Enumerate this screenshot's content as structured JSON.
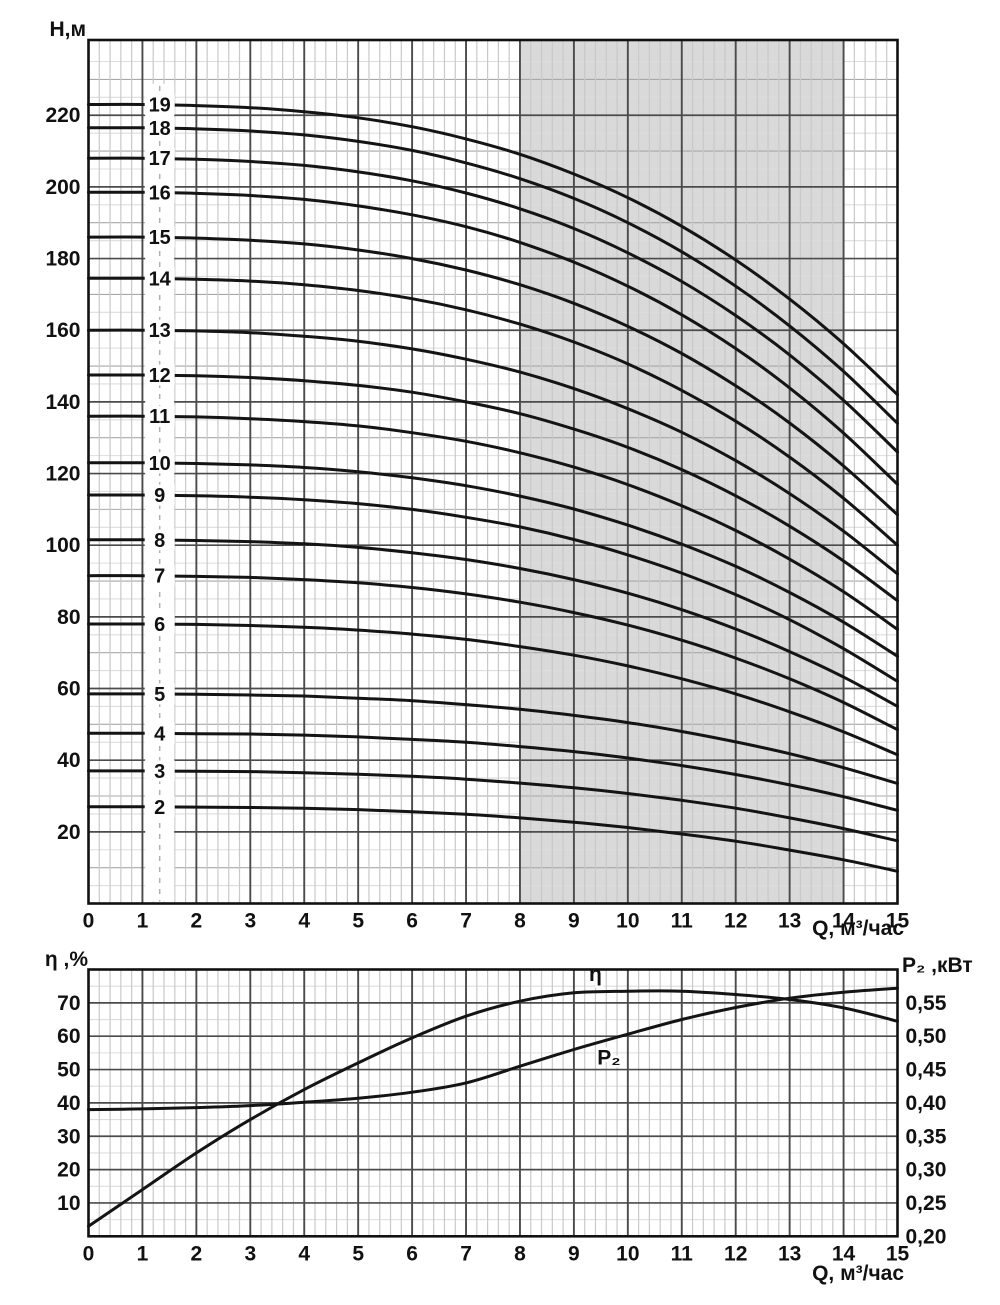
{
  "figure": {
    "background": "#ffffff",
    "description": "Pump performance curves: head vs flow for 2-19 stages (top), efficiency and shaft power vs flow (bottom)"
  },
  "colors": {
    "curve": "#141414",
    "band": "#d9d9d9",
    "grid_major": "#4b4b4b",
    "grid_mid": "#a8a8a8",
    "grid_light": "#dddddd",
    "grid_minor_v": "#c9c9c9",
    "border": "#111111",
    "dashed_guide": "#b0b0b0"
  },
  "chart_data": [
    {
      "type": "line",
      "id": "head_flow_chart",
      "ylabel": "Н,м",
      "xlabel": "Q, м³/час",
      "x_range": [
        0,
        15
      ],
      "y_range": [
        0,
        241
      ],
      "x_ticks": [
        0,
        1,
        2,
        3,
        4,
        5,
        6,
        7,
        8,
        9,
        10,
        11,
        12,
        13,
        14,
        15
      ],
      "y_ticks": [
        20,
        40,
        60,
        80,
        100,
        120,
        140,
        160,
        180,
        200,
        220
      ],
      "x_minor_step": 0.2,
      "y_minor_step": 5,
      "y_mid_step": 10,
      "grid": "on",
      "operating_band_q": [
        8,
        14
      ],
      "curve_label_q": 1.32,
      "x": [
        0,
        1,
        2,
        3,
        4,
        5,
        6,
        7,
        8,
        9,
        10,
        11,
        12,
        13,
        14,
        15
      ],
      "series": [
        {
          "name": "2",
          "values": [
            27,
            27,
            26.9,
            26.8,
            26.6,
            26.2,
            25.6,
            24.9,
            23.9,
            22.7,
            21.2,
            19.4,
            17.4,
            14.9,
            12.2,
            9
          ]
        },
        {
          "name": "3",
          "values": [
            37,
            37,
            36.9,
            36.8,
            36.5,
            36.1,
            35.5,
            34.7,
            33.6,
            32.3,
            30.7,
            28.8,
            26.6,
            23.9,
            20.9,
            17.5
          ]
        },
        {
          "name": "4",
          "values": [
            47.5,
            47.5,
            47.4,
            47.3,
            47.0,
            46.5,
            45.8,
            45.0,
            43.8,
            42.4,
            40.6,
            38.5,
            36.0,
            33.1,
            29.8,
            26
          ]
        },
        {
          "name": "5",
          "values": [
            58.5,
            58.5,
            58.4,
            58.2,
            57.9,
            57.3,
            56.6,
            55.5,
            54.2,
            52.5,
            50.5,
            48.0,
            45.1,
            41.8,
            37.9,
            33.5
          ]
        },
        {
          "name": "6",
          "values": [
            78,
            78,
            77.9,
            77.6,
            77.1,
            76.3,
            75.2,
            73.7,
            71.7,
            69.3,
            66.3,
            62.7,
            58.5,
            53.5,
            47.9,
            41.5
          ]
        },
        {
          "name": "7",
          "values": [
            91.5,
            91.5,
            91.3,
            91.0,
            90.4,
            89.5,
            88.2,
            86.4,
            84.1,
            81.2,
            77.7,
            73.5,
            68.5,
            62.7,
            56.1,
            48.5
          ]
        },
        {
          "name": "8",
          "values": [
            101.5,
            101.5,
            101.3,
            101.0,
            100.4,
            99.4,
            97.9,
            96.0,
            93.5,
            90.4,
            86.6,
            82.0,
            76.6,
            70.3,
            63.2,
            55
          ]
        },
        {
          "name": "9",
          "values": [
            114,
            114,
            113.8,
            113.4,
            112.7,
            111.6,
            110.0,
            107.8,
            105.1,
            101.6,
            97.3,
            92.2,
            86.2,
            79.2,
            71.1,
            62
          ]
        },
        {
          "name": "10",
          "values": [
            123,
            123,
            122.8,
            122.4,
            121.7,
            120.5,
            118.8,
            116.6,
            113.7,
            110.1,
            105.6,
            100.3,
            94.1,
            86.8,
            78.5,
            69
          ]
        },
        {
          "name": "11",
          "values": [
            136,
            136,
            135.8,
            135.3,
            134.5,
            133.3,
            131.4,
            129.0,
            125.8,
            121.8,
            116.9,
            111.0,
            104.1,
            96.1,
            87.0,
            76.5
          ]
        },
        {
          "name": "12",
          "values": [
            147.5,
            147.5,
            147.3,
            146.8,
            145.9,
            144.6,
            142.7,
            140.0,
            136.7,
            132.4,
            127.3,
            121.1,
            113.8,
            105.3,
            95.6,
            84.5
          ]
        },
        {
          "name": "13",
          "values": [
            160,
            160,
            159.8,
            159.3,
            158.3,
            156.9,
            154.8,
            151.9,
            148.3,
            143.7,
            138.1,
            131.5,
            123.6,
            114.4,
            103.9,
            92
          ]
        },
        {
          "name": "14",
          "values": [
            174.5,
            174.5,
            174.2,
            173.7,
            172.7,
            171.1,
            168.8,
            165.7,
            161.7,
            156.7,
            150.6,
            143.2,
            134.6,
            124.6,
            113.1,
            100
          ]
        },
        {
          "name": "15",
          "values": [
            186,
            186,
            185.7,
            185.1,
            184.1,
            182.4,
            180.0,
            176.8,
            172.7,
            167.5,
            161.1,
            153.5,
            144.5,
            134.1,
            122.1,
            108.5
          ]
        },
        {
          "name": "16",
          "values": [
            198.5,
            198.5,
            198.2,
            197.6,
            196.5,
            194.7,
            192.2,
            188.9,
            184.5,
            179.0,
            172.3,
            164.3,
            154.9,
            143.9,
            131.3,
            117
          ]
        },
        {
          "name": "17",
          "values": [
            208,
            208,
            207.7,
            207.1,
            206.0,
            204.2,
            201.7,
            198.3,
            193.9,
            188.4,
            181.6,
            173.6,
            164.1,
            153.1,
            140.4,
            126
          ]
        },
        {
          "name": "18",
          "values": [
            216.5,
            216.5,
            216.2,
            215.6,
            214.5,
            212.7,
            210.2,
            206.7,
            202.3,
            196.8,
            190.0,
            181.9,
            172.3,
            161.2,
            148.5,
            134
          ]
        },
        {
          "name": "19",
          "values": [
            223,
            223,
            222.7,
            222.1,
            221.0,
            219.3,
            216.8,
            213.4,
            209.1,
            203.6,
            197.0,
            189.0,
            179.6,
            168.7,
            156.2,
            142
          ]
        }
      ]
    },
    {
      "type": "line",
      "id": "efficiency_power_chart",
      "ylabel_left": "η ,%",
      "ylabel_right": "P₂ ,кВт",
      "xlabel": "Q, м³/час",
      "x_range": [
        0,
        15
      ],
      "y_left_range": [
        0,
        80
      ],
      "y_right_range": [
        0.2,
        0.6
      ],
      "x_ticks": [
        0,
        1,
        2,
        3,
        4,
        5,
        6,
        7,
        8,
        9,
        10,
        11,
        12,
        13,
        14,
        15
      ],
      "y_left_ticks": [
        10,
        20,
        30,
        40,
        50,
        60,
        70
      ],
      "y_right_tick_labels": [
        "0,20",
        "0,25",
        "0,30",
        "0,35",
        "0,40",
        "0,45",
        "0,50",
        "0,55"
      ],
      "x_minor_step": 0.2,
      "y_left_minor_step": 5,
      "grid": "on",
      "x": [
        0,
        1,
        2,
        3,
        4,
        5,
        6,
        7,
        8,
        9,
        10,
        11,
        12,
        13,
        14,
        15
      ],
      "series": [
        {
          "name": "η",
          "axis": "left",
          "label_q": 9.4,
          "label_side": "above",
          "values": [
            3,
            14,
            25,
            35,
            44,
            52,
            59.5,
            66,
            70.5,
            73,
            73.5,
            73.5,
            72.5,
            71,
            68.5,
            64.5
          ]
        },
        {
          "name": "P₂",
          "axis": "right",
          "label_q": 9.65,
          "label_side": "below",
          "values": [
            0.39,
            0.391,
            0.393,
            0.396,
            0.401,
            0.407,
            0.416,
            0.43,
            0.455,
            0.48,
            0.503,
            0.525,
            0.543,
            0.557,
            0.566,
            0.572
          ]
        }
      ]
    }
  ]
}
